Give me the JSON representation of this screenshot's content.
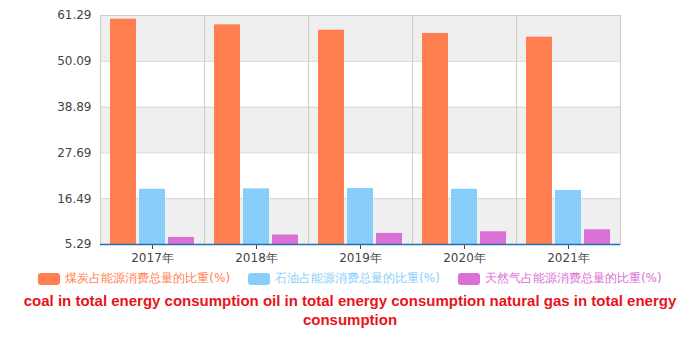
{
  "chart_data": {
    "type": "bar",
    "categories": [
      "2017年",
      "2018年",
      "2019年",
      "2020年",
      "2021年"
    ],
    "series": [
      {
        "name": "煤炭占能源消费总量的比重(%)",
        "color": "#ff7f50",
        "values": [
          60.4,
          59.0,
          57.7,
          56.9,
          56.0
        ]
      },
      {
        "name": "石油占能源消费总量的比重(%)",
        "color": "#87cefa",
        "values": [
          18.8,
          18.9,
          19.0,
          18.8,
          18.5
        ]
      },
      {
        "name": "天然气占能源消费总量的比重(%)",
        "color": "#da70d6",
        "values": [
          7.0,
          7.6,
          8.0,
          8.4,
          8.9
        ]
      }
    ],
    "ylim": [
      5.29,
      61.29
    ],
    "yticks": [
      5.29,
      16.49,
      27.69,
      38.89,
      50.09,
      61.29
    ],
    "grid": true,
    "legend": "bottom",
    "caption": "coal in total energy consumption oil in total energy consumption natural gas in total energy consumption"
  }
}
